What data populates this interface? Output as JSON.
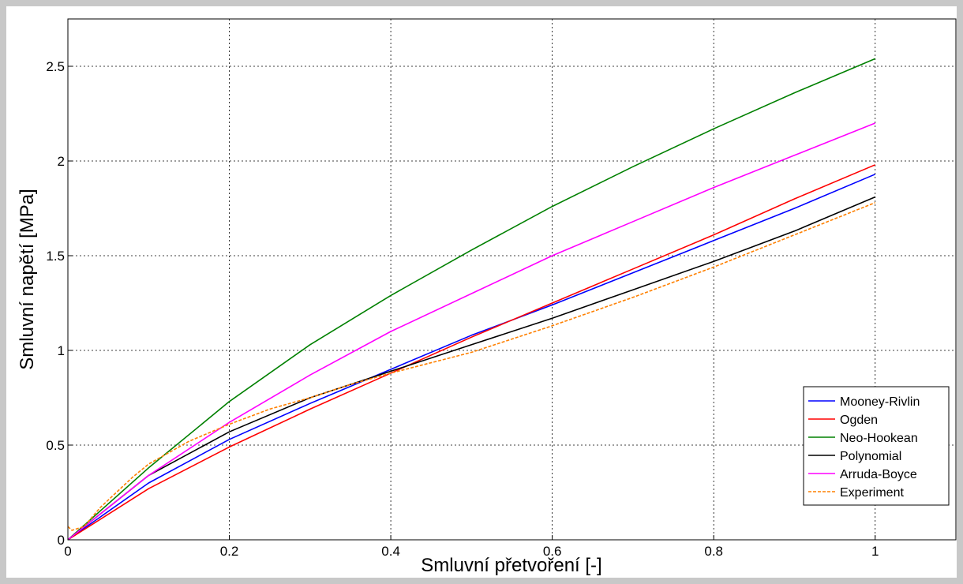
{
  "chart_data": {
    "type": "line",
    "title": "",
    "xlabel": "Smluvní přetvoření [-]",
    "ylabel": "Smluvní napětí [MPa]",
    "xlim": [
      0,
      1.1
    ],
    "ylim": [
      0,
      2.75
    ],
    "xticks": [
      0,
      0.2,
      0.4,
      0.6,
      0.8,
      1
    ],
    "xtick_labels": [
      "0",
      "0.2",
      "0.4",
      "0.6",
      "0.8",
      "1"
    ],
    "yticks": [
      0,
      0.5,
      1,
      1.5,
      2,
      2.5
    ],
    "ytick_labels": [
      "0",
      "0.5",
      "1",
      "1.5",
      "2",
      "2.5"
    ],
    "grid": true,
    "legend_position": "bottom-right",
    "series": [
      {
        "name": "Mooney-Rivlin",
        "color": "#0000ff",
        "dashed": false,
        "x": [
          0,
          0.1,
          0.2,
          0.3,
          0.4,
          0.5,
          0.6,
          0.7,
          0.8,
          0.9,
          1.0
        ],
        "y": [
          0,
          0.3,
          0.53,
          0.72,
          0.9,
          1.08,
          1.24,
          1.41,
          1.58,
          1.75,
          1.93
        ]
      },
      {
        "name": "Ogden",
        "color": "#ff0000",
        "dashed": false,
        "x": [
          0,
          0.1,
          0.2,
          0.3,
          0.4,
          0.5,
          0.6,
          0.7,
          0.8,
          0.9,
          1.0
        ],
        "y": [
          0,
          0.27,
          0.49,
          0.69,
          0.88,
          1.07,
          1.25,
          1.43,
          1.61,
          1.8,
          1.98
        ]
      },
      {
        "name": "Neo-Hookean",
        "color": "#008000",
        "dashed": false,
        "x": [
          0,
          0.1,
          0.2,
          0.3,
          0.4,
          0.5,
          0.6,
          0.7,
          0.8,
          0.9,
          1.0
        ],
        "y": [
          0,
          0.38,
          0.73,
          1.03,
          1.29,
          1.53,
          1.76,
          1.97,
          2.17,
          2.36,
          2.54
        ]
      },
      {
        "name": "Polynomial",
        "color": "#000000",
        "dashed": false,
        "x": [
          0,
          0.1,
          0.2,
          0.3,
          0.4,
          0.5,
          0.6,
          0.7,
          0.8,
          0.9,
          1.0
        ],
        "y": [
          0,
          0.34,
          0.57,
          0.75,
          0.89,
          1.03,
          1.17,
          1.32,
          1.47,
          1.63,
          1.81
        ]
      },
      {
        "name": "Arruda-Boyce",
        "color": "#ff00ff",
        "dashed": false,
        "x": [
          0,
          0.1,
          0.2,
          0.3,
          0.4,
          0.5,
          0.6,
          0.7,
          0.8,
          0.9,
          1.0
        ],
        "y": [
          0,
          0.34,
          0.62,
          0.87,
          1.1,
          1.3,
          1.5,
          1.68,
          1.86,
          2.03,
          2.2
        ]
      },
      {
        "name": "Experiment",
        "color": "#ff8000",
        "dashed": true,
        "x": [
          0,
          0.005,
          0.02,
          0.04,
          0.06,
          0.08,
          0.1,
          0.15,
          0.2,
          0.25,
          0.3,
          0.35,
          0.4,
          0.5,
          0.6,
          0.7,
          0.8,
          0.9,
          1.0
        ],
        "y": [
          0.07,
          0.05,
          0.07,
          0.17,
          0.25,
          0.33,
          0.4,
          0.52,
          0.61,
          0.69,
          0.75,
          0.82,
          0.88,
          0.99,
          1.13,
          1.28,
          1.44,
          1.61,
          1.78
        ]
      }
    ]
  }
}
